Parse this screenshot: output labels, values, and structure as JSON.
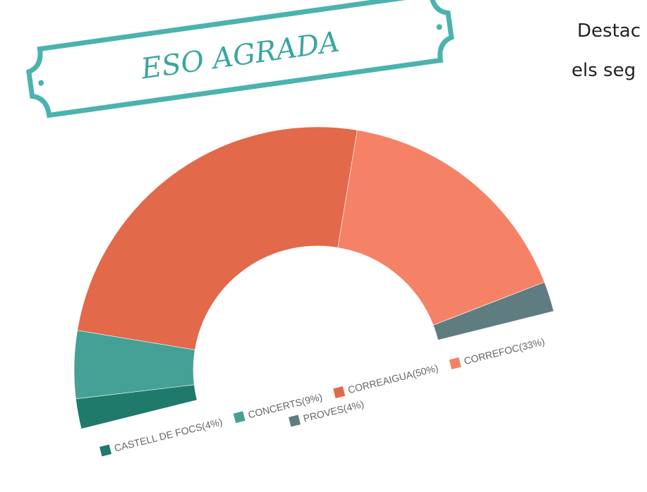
{
  "chart_data": {
    "type": "pie",
    "donut": true,
    "semicircle": true,
    "title": "ESO AGRADA",
    "annotations": [
      "Destac",
      "els seg"
    ],
    "categories": [
      "CASTELL DE FOCS",
      "CONCERTS",
      "CORREAIGUA",
      "CORREFOC",
      "PROVES"
    ],
    "values": [
      4,
      9,
      50,
      33,
      4
    ],
    "value_labels": [
      "(4%)",
      "(9%)",
      "(50%)",
      "(33%)",
      "(4%)"
    ],
    "colors": [
      "#1f7a6c",
      "#45a195",
      "#e2694a",
      "#f58266",
      "#5f7d80"
    ],
    "legend": "bottom"
  }
}
